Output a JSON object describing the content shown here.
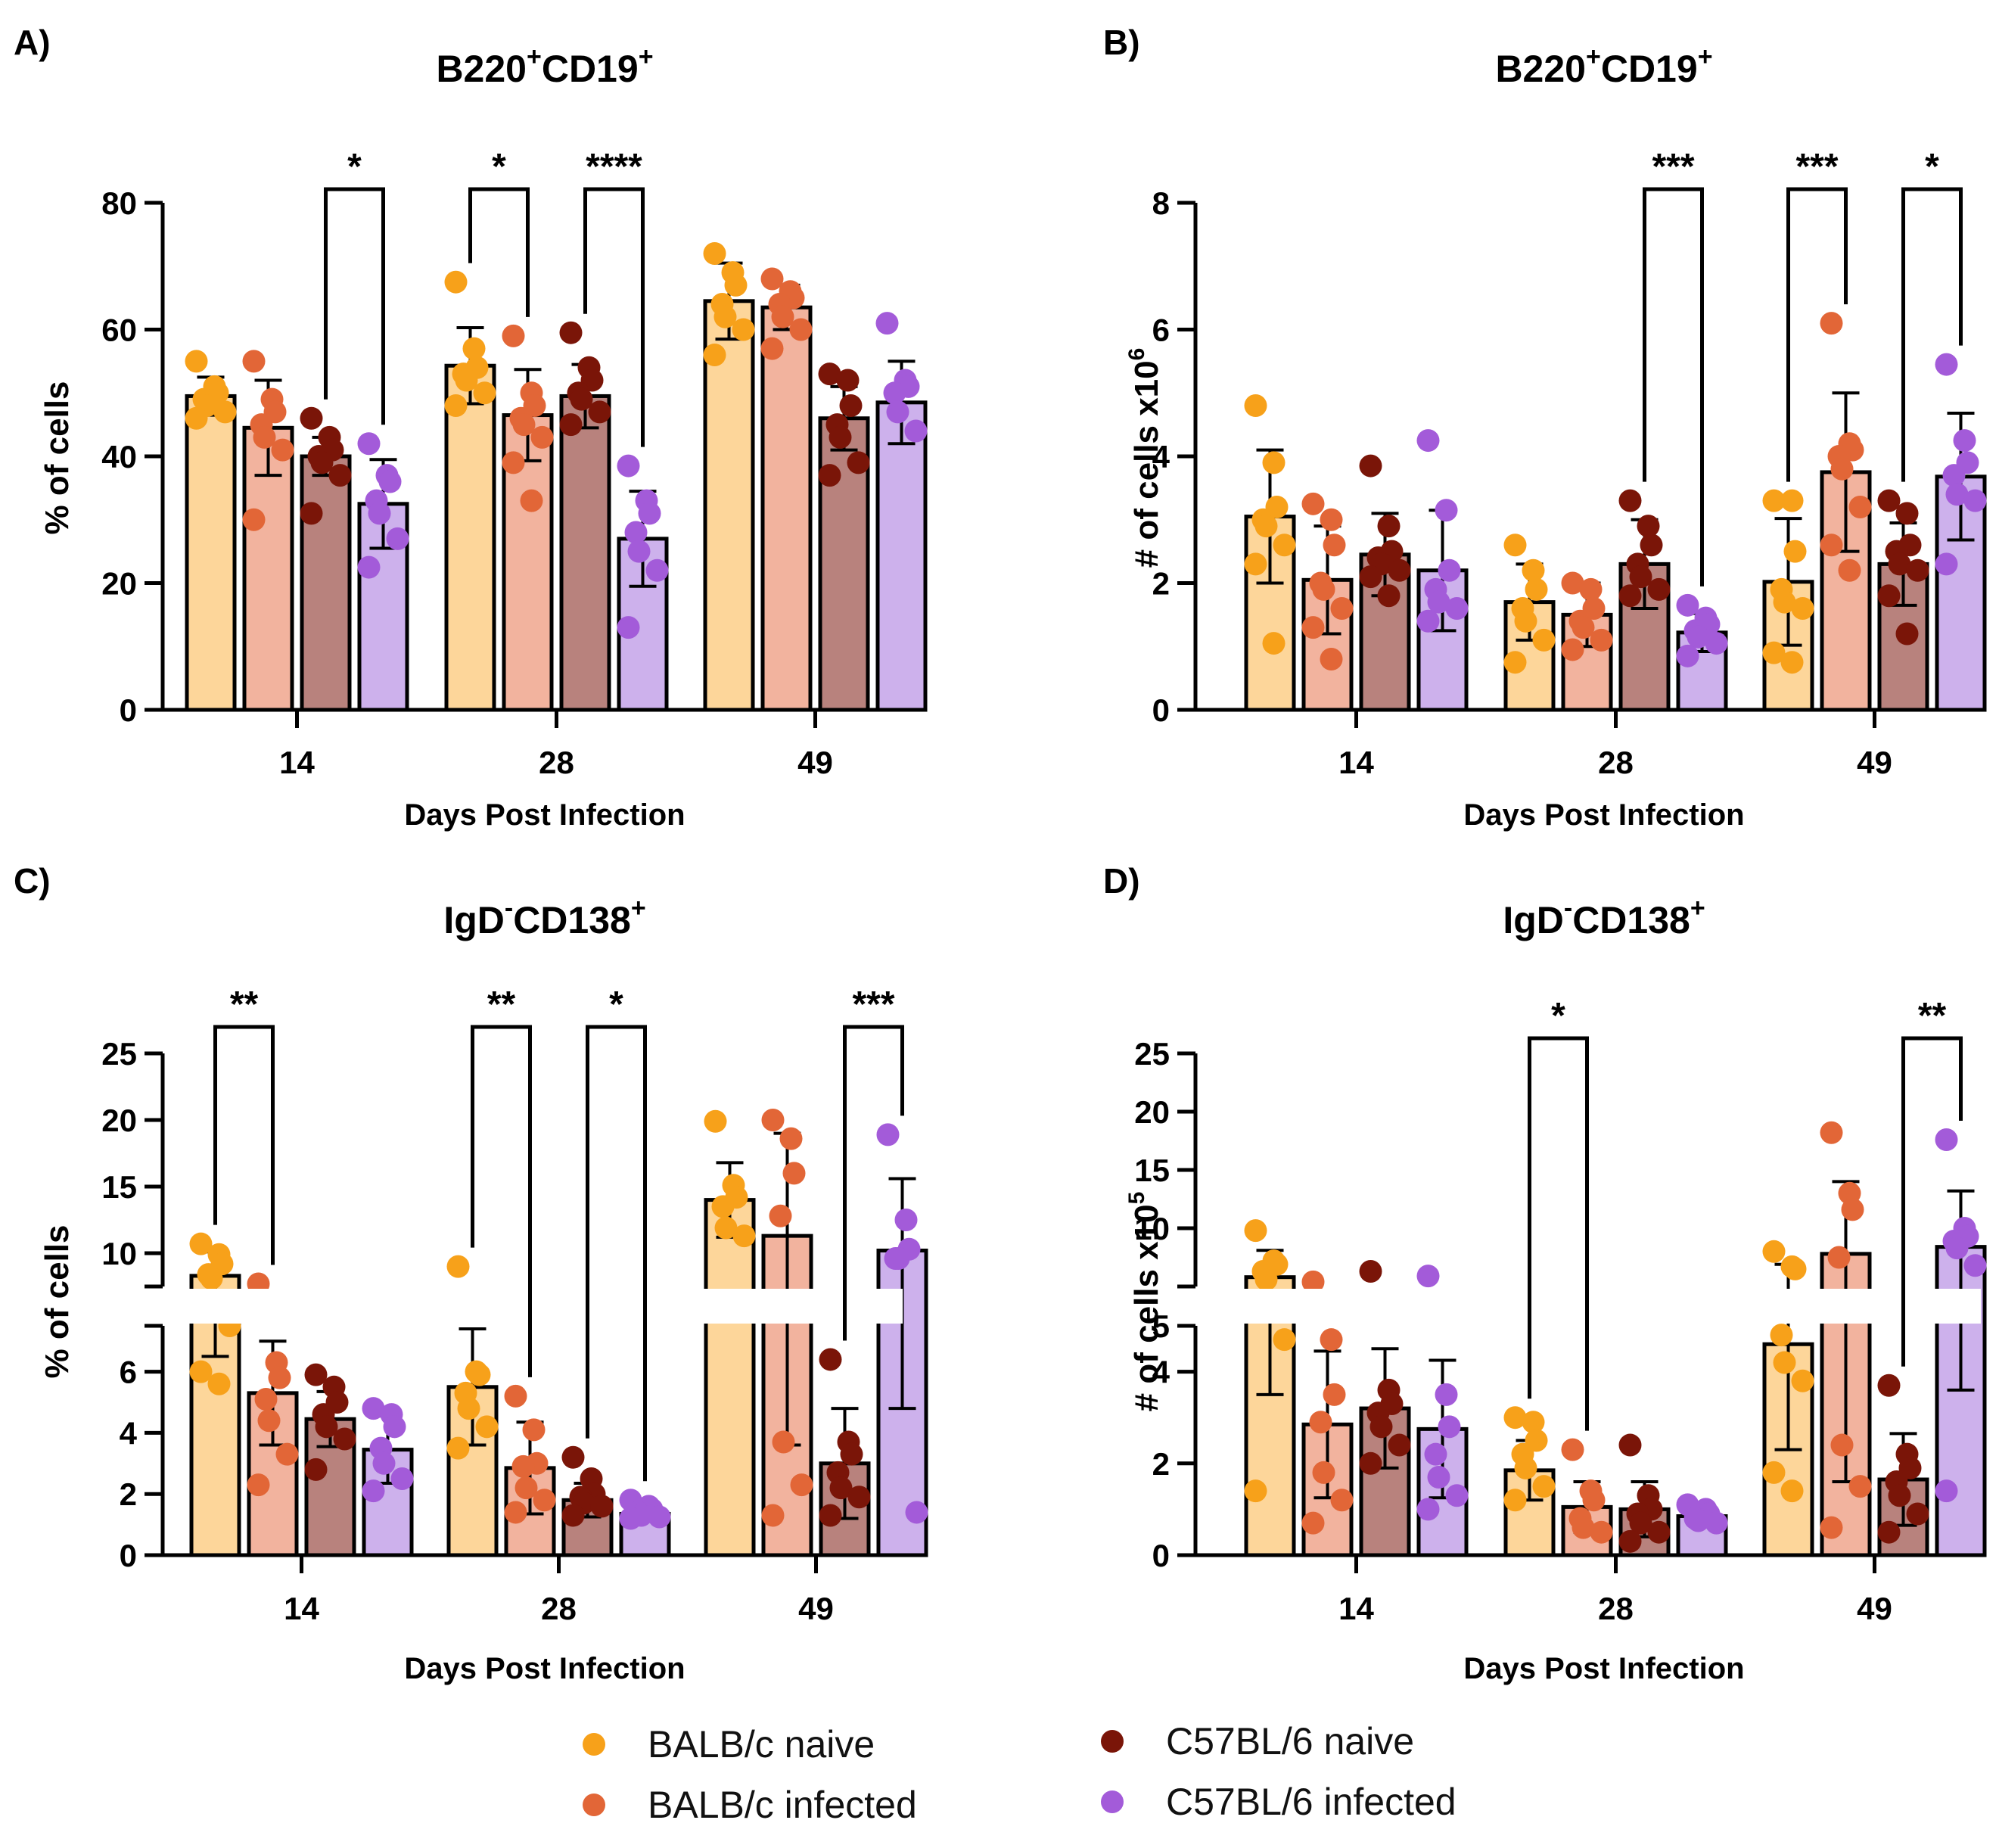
{
  "colors": {
    "balb_naive": "#F7A11A",
    "balb_infected": "#E26637",
    "c57_naive": "#7A1508",
    "c57_infected": "#A35BD9",
    "bar_balb_naive": "#FDD69A",
    "bar_balb_infected": "#F2B39E",
    "bar_c57_naive": "#B8827D",
    "bar_c57_infected": "#CDB1EC"
  },
  "legend": {
    "items": [
      {
        "label": "BALB/c naive",
        "color": "#F7A11A"
      },
      {
        "label": "BALB/c infected",
        "color": "#E26637"
      },
      {
        "label": "C57BL/6 naive",
        "color": "#7A1508"
      },
      {
        "label": "C57BL/6 infected",
        "color": "#A35BD9"
      }
    ]
  },
  "chart_data": [
    {
      "panel": "A)",
      "type": "bar",
      "title_main": "B220",
      "title_sup1": "+",
      "title_mid": "CD19",
      "title_sup2": "+",
      "xlabel": "Days Post Infection",
      "ylabel": "% of cells",
      "categories": [
        "14",
        "28",
        "49"
      ],
      "ylim": [
        0,
        80
      ],
      "yticks": [
        "0",
        "20",
        "40",
        "60",
        "80"
      ],
      "series": [
        {
          "name": "BALB/c naive",
          "values": [
            49.5,
            54.3,
            64.5
          ],
          "errors": [
            3.0,
            6.0,
            6.0
          ],
          "points": [
            [
              55,
              51,
              50,
              49,
              48,
              47,
              46
            ],
            [
              67.5,
              57,
              54,
              53,
              52,
              50,
              48
            ],
            [
              72,
              69,
              67,
              64,
              62,
              60,
              56
            ]
          ]
        },
        {
          "name": "BALB/c infected",
          "values": [
            44.5,
            46.5,
            63.5
          ],
          "errors": [
            7.5,
            7.2,
            3.5
          ],
          "points": [
            [
              55,
              49,
              47,
              45,
              43,
              41,
              30
            ],
            [
              59,
              50,
              48,
              46,
              45,
              43,
              39,
              33
            ],
            [
              68,
              66,
              65,
              64,
              62,
              60,
              57
            ]
          ]
        },
        {
          "name": "C57BL/6 naive",
          "values": [
            40.0,
            49.5,
            46.0
          ],
          "errors": [
            3.0,
            5.0,
            5.0
          ],
          "points": [
            [
              46,
              43,
              41,
              40,
              39,
              37,
              31
            ],
            [
              59.5,
              54,
              52,
              50,
              49,
              47,
              45
            ],
            [
              53,
              52,
              48,
              45,
              43,
              39,
              37
            ]
          ]
        },
        {
          "name": "C57BL/6 infected",
          "values": [
            32.5,
            27.0,
            48.5
          ],
          "errors": [
            7.0,
            7.5,
            6.5
          ],
          "points": [
            [
              42,
              37,
              36,
              33,
              31,
              27,
              22.5
            ],
            [
              38.5,
              33,
              31,
              28,
              25,
              22,
              13
            ],
            [
              61,
              52,
              51,
              50,
              47,
              44
            ]
          ]
        }
      ],
      "significance": [
        {
          "day": "14",
          "from": "C57BL/6 naive",
          "to": "C57BL/6 infected",
          "label": "*"
        },
        {
          "day": "28",
          "from": "BALB/c naive",
          "to": "BALB/c infected",
          "label": "*"
        },
        {
          "day": "28",
          "from": "C57BL/6 naive",
          "to": "C57BL/6 infected",
          "label": "****"
        }
      ]
    },
    {
      "panel": "B)",
      "type": "bar",
      "title_main": "B220",
      "title_sup1": "+",
      "title_mid": "CD19",
      "title_sup2": "+",
      "xlabel": "Days Post Infection",
      "ylabel_main": "# of cells x10",
      "ylabel_sup": "6",
      "categories": [
        "14",
        "28",
        "49"
      ],
      "ylim": [
        0,
        8
      ],
      "yticks": [
        "0",
        "2",
        "4",
        "6",
        "8"
      ],
      "series": [
        {
          "name": "BALB/c naive",
          "values": [
            3.05,
            1.7,
            2.02
          ],
          "errors": [
            1.05,
            0.6,
            1.0
          ],
          "points": [
            [
              4.8,
              3.9,
              3.2,
              3.0,
              2.9,
              2.6,
              2.3,
              1.05
            ],
            [
              2.6,
              2.2,
              1.9,
              1.6,
              1.4,
              1.1,
              0.75
            ],
            [
              3.3,
              3.3,
              2.5,
              1.9,
              1.7,
              1.6,
              0.9,
              0.75
            ]
          ]
        },
        {
          "name": "BALB/c infected",
          "values": [
            2.05,
            1.5,
            3.75
          ],
          "errors": [
            0.85,
            0.5,
            1.25
          ],
          "points": [
            [
              3.25,
              3.0,
              2.6,
              2.0,
              1.9,
              1.6,
              1.3,
              0.8
            ],
            [
              2.0,
              1.9,
              1.6,
              1.4,
              1.3,
              1.1,
              0.95
            ],
            [
              6.1,
              4.2,
              4.1,
              4.0,
              3.8,
              3.2,
              2.6,
              2.2
            ]
          ]
        },
        {
          "name": "C57BL/6 naive",
          "values": [
            2.45,
            2.3,
            2.3
          ],
          "errors": [
            0.65,
            0.7,
            0.65
          ],
          "points": [
            [
              3.85,
              2.9,
              2.5,
              2.4,
              2.3,
              2.2,
              2.1,
              1.8
            ],
            [
              3.3,
              2.9,
              2.6,
              2.3,
              2.1,
              1.9,
              1.8
            ],
            [
              3.3,
              3.1,
              2.6,
              2.5,
              2.3,
              2.2,
              1.8,
              1.2
            ]
          ]
        },
        {
          "name": "C57BL/6 infected",
          "values": [
            2.2,
            1.22,
            3.68
          ],
          "errors": [
            0.95,
            0.3,
            1.0
          ],
          "points": [
            [
              4.25,
              3.15,
              2.2,
              1.9,
              1.7,
              1.6,
              1.4
            ],
            [
              1.65,
              1.45,
              1.35,
              1.25,
              1.15,
              1.05,
              0.85
            ],
            [
              5.45,
              4.25,
              3.9,
              3.7,
              3.4,
              3.3,
              2.3
            ]
          ]
        }
      ],
      "significance": [
        {
          "day": "28",
          "from": "C57BL/6 naive",
          "to": "C57BL/6 infected",
          "label": "***"
        },
        {
          "day": "49",
          "from": "BALB/c naive",
          "to": "BALB/c infected",
          "label": "***"
        },
        {
          "day": "49",
          "from": "C57BL/6 naive",
          "to": "C57BL/6 infected",
          "label": "*"
        }
      ]
    },
    {
      "panel": "C)",
      "type": "bar",
      "title_main": "IgD",
      "title_sup1": "-",
      "title_mid": "CD138",
      "title_sup2": "+",
      "xlabel": "Days Post Infection",
      "ylabel": "% of cells",
      "categories": [
        "14",
        "28",
        "49"
      ],
      "axis_break": true,
      "ylim_lower": [
        0,
        7.5
      ],
      "ylim_upper": [
        7.5,
        25
      ],
      "yticks_lower": [
        "0",
        "2",
        "4",
        "6"
      ],
      "yticks_upper": [
        "10",
        "15",
        "20",
        "25"
      ],
      "series": [
        {
          "name": "BALB/c naive",
          "values": [
            8.3,
            5.5,
            14.0
          ],
          "errors": [
            1.8,
            1.9,
            2.8
          ],
          "points": [
            [
              10.7,
              9.9,
              9.2,
              8.4,
              8.1,
              7.5,
              6.0,
              5.6
            ],
            [
              9.0,
              6.0,
              5.9,
              5.3,
              4.8,
              4.2,
              3.5
            ],
            [
              19.9,
              15.1,
              14.2,
              13.5,
              11.9,
              11.3
            ]
          ]
        },
        {
          "name": "BALB/c infected",
          "values": [
            5.3,
            2.85,
            11.3
          ],
          "errors": [
            1.7,
            1.5,
            7.7
          ],
          "points": [
            [
              7.7,
              6.3,
              5.8,
              5.1,
              4.4,
              3.3,
              2.3
            ],
            [
              5.2,
              4.1,
              3.0,
              2.9,
              2.2,
              1.8,
              1.4
            ],
            [
              20.0,
              18.6,
              16.0,
              12.8,
              3.7,
              2.3,
              1.3
            ]
          ]
        },
        {
          "name": "C57BL/6 naive",
          "values": [
            4.45,
            1.8,
            3.0
          ],
          "errors": [
            0.9,
            0.55,
            1.8
          ],
          "points": [
            [
              5.9,
              5.5,
              5.0,
              4.6,
              4.2,
              3.8,
              2.8
            ],
            [
              3.2,
              2.5,
              2.0,
              1.9,
              1.7,
              1.6,
              1.3
            ],
            [
              6.4,
              3.7,
              3.3,
              2.7,
              2.2,
              1.9,
              1.3
            ]
          ]
        },
        {
          "name": "C57BL/6 infected",
          "values": [
            3.45,
            1.35,
            10.2
          ],
          "errors": [
            1.1,
            0.25,
            5.4
          ],
          "points": [
            [
              4.8,
              4.6,
              4.2,
              3.5,
              3.0,
              2.5,
              2.1
            ],
            [
              1.8,
              1.6,
              1.5,
              1.4,
              1.3,
              1.25,
              1.2
            ],
            [
              18.9,
              12.5,
              10.3,
              9.6,
              9.6,
              1.4
            ]
          ]
        }
      ],
      "significance": [
        {
          "day": "14",
          "from": "BALB/c naive",
          "to": "BALB/c infected",
          "label": "**"
        },
        {
          "day": "28",
          "from": "BALB/c naive",
          "to": "BALB/c infected",
          "label": "**"
        },
        {
          "day": "28",
          "from": "C57BL/6 naive",
          "to": "C57BL/6 infected",
          "label": "*"
        },
        {
          "day": "49",
          "from": "C57BL/6 naive",
          "to": "C57BL/6 infected",
          "label": "***"
        }
      ]
    },
    {
      "panel": "D)",
      "type": "bar",
      "title_main": "IgD",
      "title_sup1": "-",
      "title_mid": "CD138",
      "title_sup2": "+",
      "xlabel": "Days Post Infection",
      "ylabel_main": "# of cells x10",
      "ylabel_sup": "5",
      "categories": [
        "14",
        "28",
        "49"
      ],
      "axis_break": true,
      "ylim_lower": [
        0,
        5
      ],
      "ylim_upper": [
        5,
        25
      ],
      "yticks_lower": [
        "0",
        "2",
        "4"
      ],
      "yticks_upper": [
        "5",
        "10",
        "15",
        "20",
        "25"
      ],
      "series": [
        {
          "name": "BALB/c naive",
          "values": [
            5.8,
            1.85,
            4.6
          ],
          "errors": [
            2.3,
            0.65,
            2.3
          ],
          "points": [
            [
              9.8,
              7.2,
              6.9,
              6.3,
              5.6,
              4.7,
              1.4
            ],
            [
              3.0,
              2.9,
              2.5,
              2.2,
              1.9,
              1.5,
              1.2
            ],
            [
              8.0,
              6.7,
              6.5,
              4.8,
              4.2,
              3.8,
              1.8,
              1.4
            ]
          ]
        },
        {
          "name": "BALB/c infected",
          "values": [
            2.85,
            1.05,
            7.8
          ],
          "errors": [
            1.6,
            0.55,
            6.2
          ],
          "points": [
            [
              5.4,
              4.7,
              3.5,
              2.9,
              1.8,
              1.2,
              0.7
            ],
            [
              2.3,
              1.4,
              1.2,
              0.8,
              0.6,
              0.5
            ],
            [
              18.2,
              13.0,
              11.6,
              7.5,
              2.4,
              1.5,
              0.6
            ]
          ]
        },
        {
          "name": "C57BL/6 naive",
          "values": [
            3.2,
            1.0,
            1.65
          ],
          "errors": [
            1.3,
            0.6,
            1.0
          ],
          "points": [
            [
              6.3,
              3.6,
              3.3,
              3.1,
              2.8,
              2.4,
              2.0
            ],
            [
              2.4,
              1.3,
              1.0,
              0.9,
              0.7,
              0.5,
              0.3
            ],
            [
              3.7,
              2.2,
              1.9,
              1.6,
              1.3,
              0.9,
              0.5
            ]
          ]
        },
        {
          "name": "C57BL/6 infected",
          "values": [
            2.75,
            0.85,
            8.4
          ],
          "errors": [
            1.5,
            0.2,
            4.8
          ],
          "points": [
            [
              5.9,
              3.5,
              2.8,
              2.2,
              1.7,
              1.3,
              1.0
            ],
            [
              1.1,
              1.0,
              0.9,
              0.8,
              0.75,
              0.7
            ],
            [
              17.6,
              10.0,
              9.3,
              8.9,
              8.3,
              6.8,
              1.4
            ]
          ]
        }
      ],
      "significance": [
        {
          "day": "28",
          "from": "BALB/c naive",
          "to": "BALB/c infected",
          "label": "*"
        },
        {
          "day": "49",
          "from": "C57BL/6 naive",
          "to": "C57BL/6 infected",
          "label": "**"
        }
      ]
    }
  ]
}
